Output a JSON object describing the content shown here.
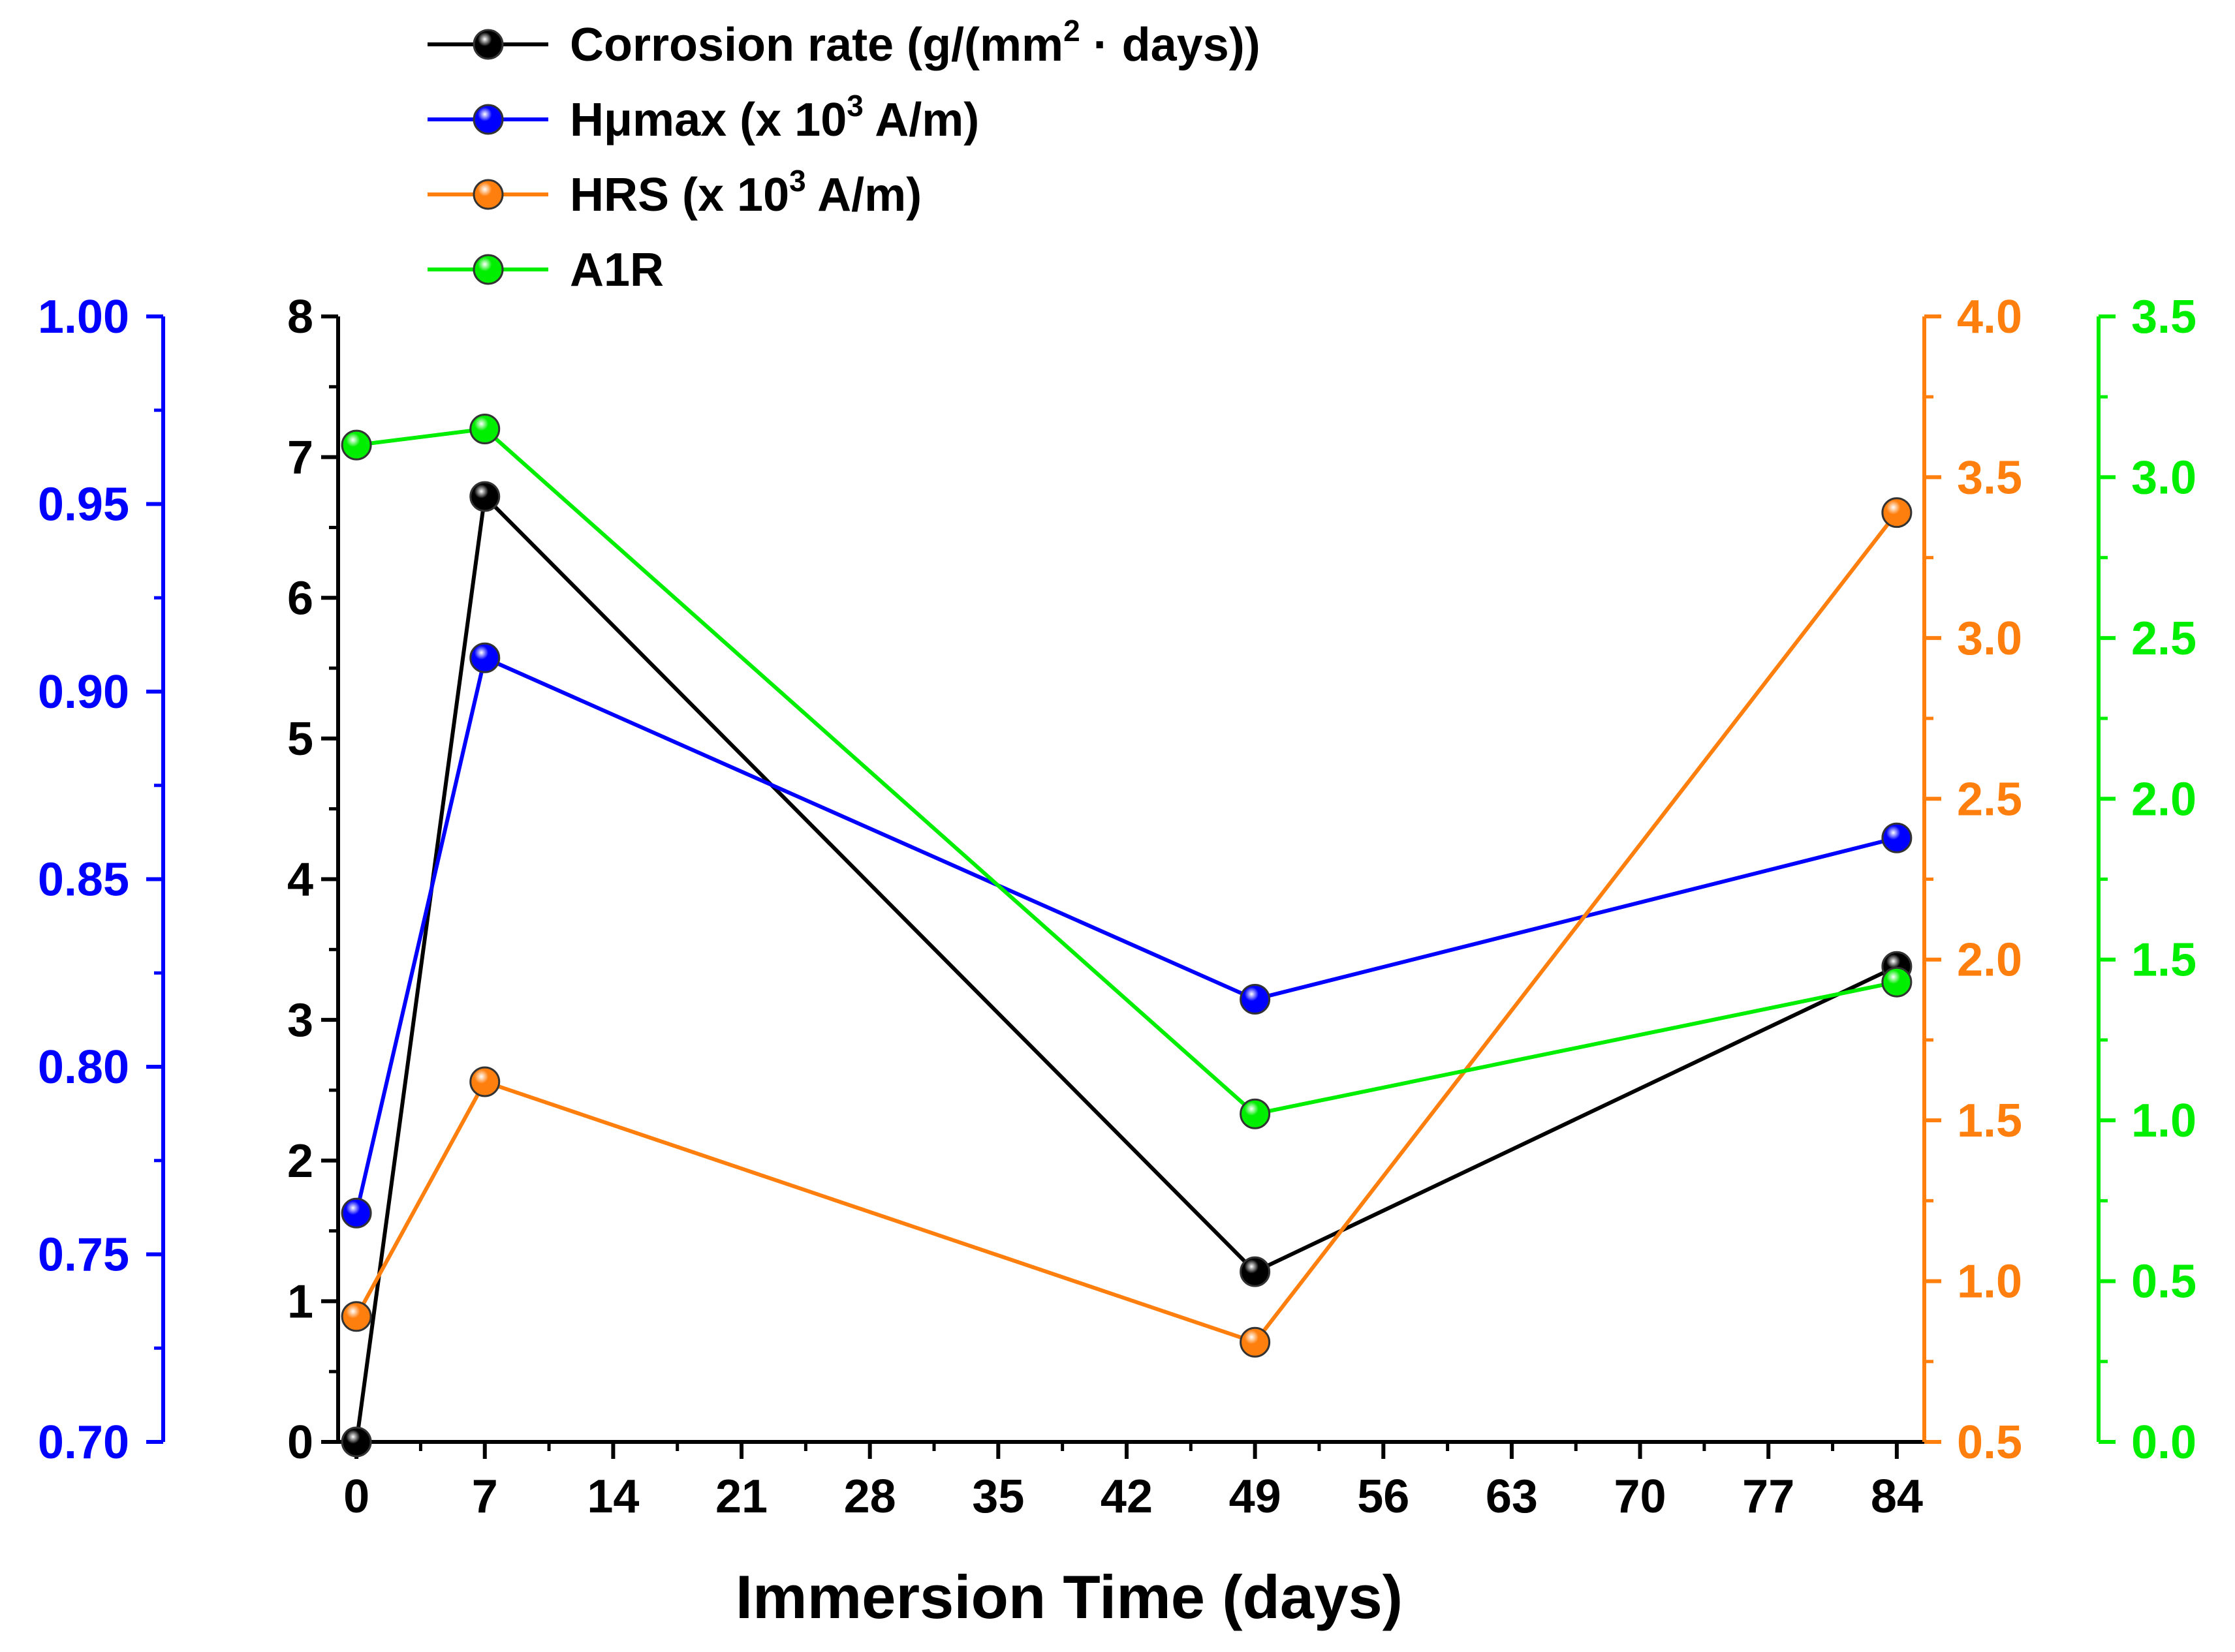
{
  "chart_data": {
    "type": "line",
    "xlabel": "Immersion Time (days)",
    "x_ticks": [
      0,
      7,
      14,
      21,
      28,
      35,
      42,
      49,
      56,
      63,
      70,
      77,
      84
    ],
    "xlim": [
      -1,
      85.5
    ],
    "x": [
      0,
      7,
      49,
      84
    ],
    "series": [
      {
        "name": "Corrosion rate (g/(mm² · days))",
        "legend_main": "Corrosion rate (g/(mm",
        "legend_sup": "2",
        "legend_tail": " · days))",
        "color": "#000000",
        "axis": "left-inner",
        "values": [
          0.0,
          6.72,
          1.21,
          3.38
        ]
      },
      {
        "name": "Hμmax (x 10³ A/m)",
        "legend_main": "Hμmax (x 10",
        "legend_sup": "3",
        "legend_tail": " A/m)",
        "color": "#0000ff",
        "axis": "left-outer",
        "values": [
          0.761,
          0.909,
          0.818,
          0.861
        ]
      },
      {
        "name": "HRS (x 10³ A/m)",
        "legend_main": "HRS (x 10",
        "legend_sup": "3",
        "legend_tail": " A/m)",
        "color": "#ff7f0e",
        "axis": "right-inner",
        "values": [
          0.89,
          1.62,
          0.81,
          3.39
        ]
      },
      {
        "name": "A1R",
        "legend_main": "A1R",
        "legend_sup": "",
        "legend_tail": "",
        "color": "#00ee00",
        "axis": "right-outer",
        "values": [
          3.1,
          3.15,
          1.02,
          1.43
        ]
      }
    ],
    "axes": {
      "left-inner": {
        "color": "#000000",
        "ylim": [
          0,
          8
        ],
        "ticks": [
          0,
          1,
          2,
          3,
          4,
          5,
          6,
          7,
          8
        ],
        "labels": [
          "0",
          "1",
          "2",
          "3",
          "4",
          "5",
          "6",
          "7",
          "8"
        ]
      },
      "left-outer": {
        "color": "#0000ff",
        "ylim": [
          0.7,
          1.0
        ],
        "ticks": [
          0.7,
          0.75,
          0.8,
          0.85,
          0.9,
          0.95,
          1.0
        ],
        "labels": [
          "0.70",
          "0.75",
          "0.80",
          "0.85",
          "0.90",
          "0.95",
          "1.00"
        ]
      },
      "right-inner": {
        "color": "#ff7f0e",
        "ylim": [
          0.5,
          4.0
        ],
        "ticks": [
          0.5,
          1.0,
          1.5,
          2.0,
          2.5,
          3.0,
          3.5,
          4.0
        ],
        "labels": [
          "0.5",
          "1.0",
          "1.5",
          "2.0",
          "2.5",
          "3.0",
          "3.5",
          "4.0"
        ]
      },
      "right-outer": {
        "color": "#00ee00",
        "ylim": [
          0.0,
          3.5
        ],
        "ticks": [
          0.0,
          0.5,
          1.0,
          1.5,
          2.0,
          2.5,
          3.0,
          3.5
        ],
        "labels": [
          "0.0",
          "0.5",
          "1.0",
          "1.5",
          "2.0",
          "2.5",
          "3.0",
          "3.5"
        ]
      }
    },
    "legend_position": "top-center",
    "grid": false
  }
}
